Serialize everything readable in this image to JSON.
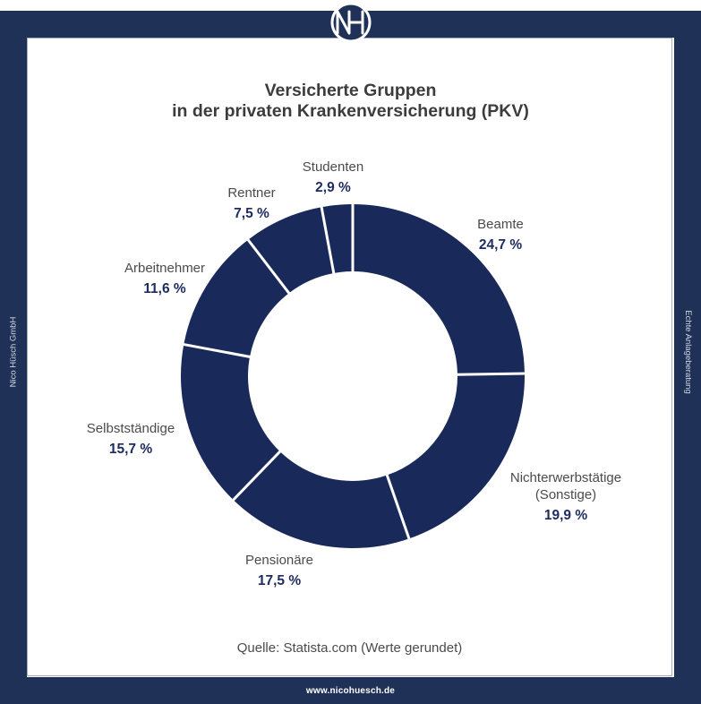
{
  "page": {
    "brand_monogram": "NH",
    "left_edge_text": "Nico Hüsch GmbH",
    "right_edge_text": "Echte Anlageberatung",
    "footer_url": "www.nicohuesch.de"
  },
  "title": {
    "line1": "Versicherte Gruppen",
    "line2": "in der privaten Krankenversicherung (PKV)"
  },
  "source_note": "Quelle: Statista.com (Werte gerundet)",
  "colors": {
    "frame_navy": "#1f3156",
    "ring_navy": "#18295a",
    "separator_white": "#ffffff",
    "label_gray": "#4b4b4d",
    "value_navy": "#1e2b5e",
    "title_charcoal": "#3c3c3e"
  },
  "chart_data": {
    "type": "pie",
    "subtype": "donut",
    "title": "Versicherte Gruppen in der privaten Krankenversicherung (PKV)",
    "unit": "percent",
    "direction": "clockwise",
    "start_angle_deg": 0,
    "legend_position": "around-slices",
    "categories": [
      "Beamte",
      "Nichterwerbstätige (Sonstige)",
      "Pensionäre",
      "Selbstständige",
      "Arbeitnehmer",
      "Rentner",
      "Studenten"
    ],
    "values": [
      24.7,
      19.9,
      17.5,
      15.7,
      11.6,
      7.5,
      2.9
    ],
    "value_labels": [
      "24,7 %",
      "19,9 %",
      "17,5 %",
      "15,7 %",
      "11,6 %",
      "7,5 %",
      "2,9 %"
    ],
    "ring_color": "#18295a",
    "separator_color": "#ffffff",
    "source": "Quelle: Statista.com (Werte gerundet)"
  }
}
